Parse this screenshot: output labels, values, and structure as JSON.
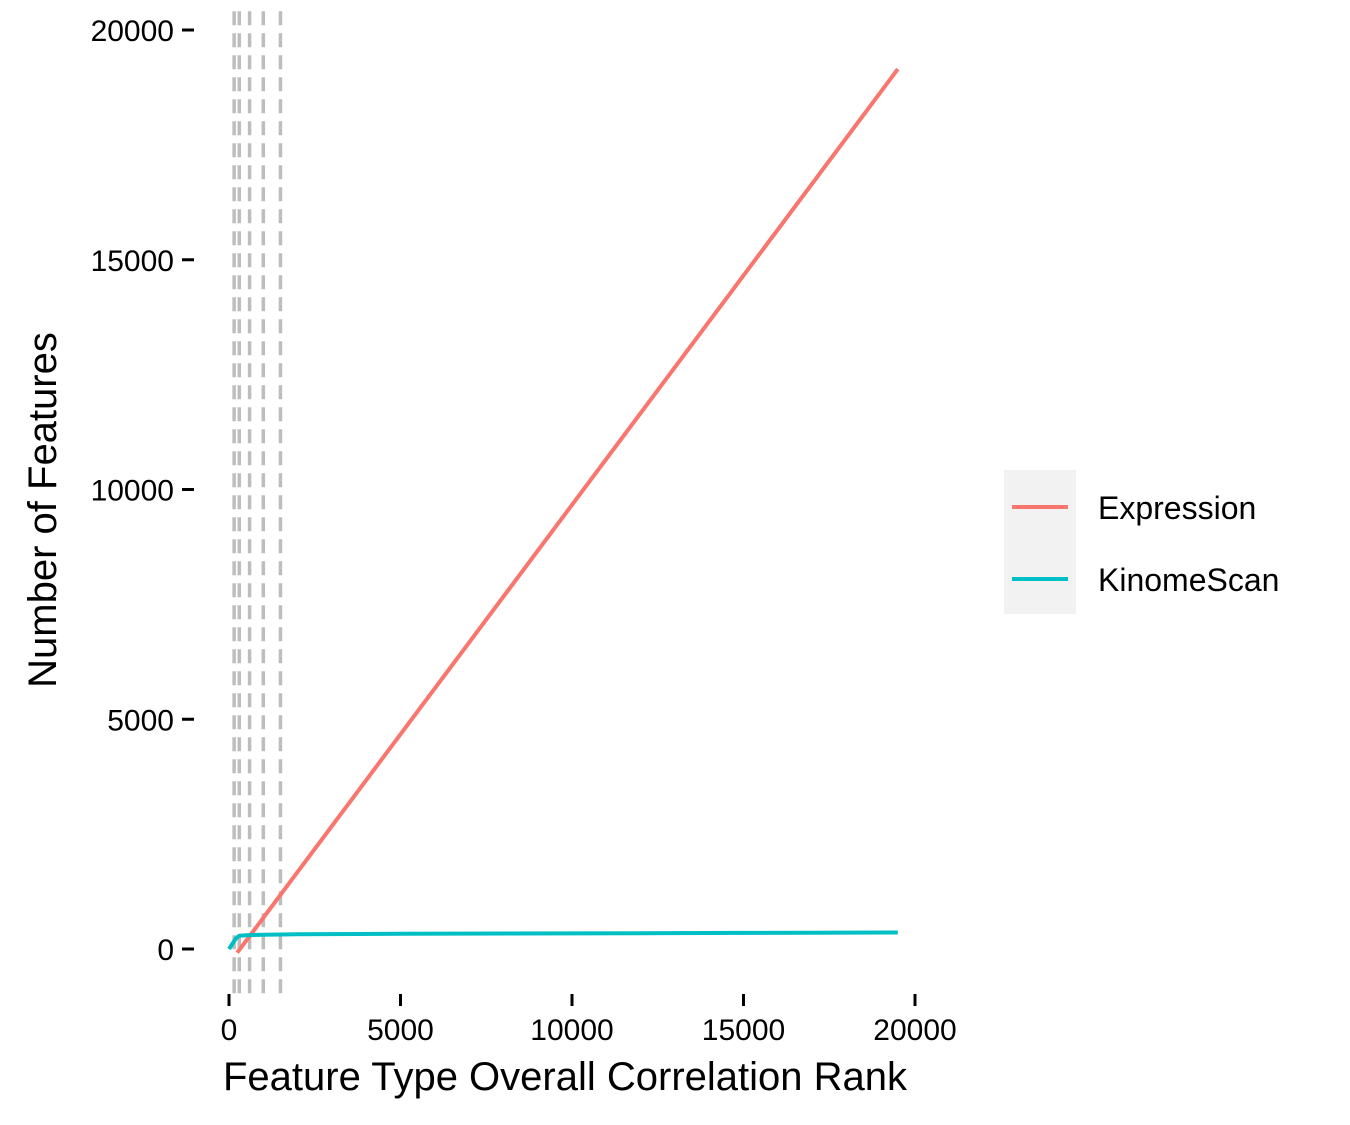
{
  "chart_data": {
    "type": "line",
    "title": "",
    "xlabel": "Feature Type Overall Correlation Rank",
    "ylabel": "Number of Features",
    "xlim": [
      -300,
      21000
    ],
    "ylim": [
      -900,
      20300
    ],
    "x_ticks": [
      0,
      5000,
      10000,
      15000,
      20000
    ],
    "y_ticks": [
      0,
      5000,
      10000,
      15000,
      20000
    ],
    "x_tick_labels": [
      "0",
      "5000",
      "10000",
      "15000",
      "20000"
    ],
    "y_tick_labels": [
      "0",
      "5000",
      "10000",
      "15000",
      "20000"
    ],
    "vlines": [
      150,
      300,
      600,
      1000,
      1500
    ],
    "vline_color": "#bdbdbd",
    "grid": false,
    "legend_position": "right",
    "series": [
      {
        "name": "Expression",
        "color": "#f8766d",
        "points": [
          [
            240,
            -80
          ],
          [
            19500,
            19150
          ]
        ]
      },
      {
        "name": "KinomeScan",
        "color": "#00bfc4",
        "points": [
          [
            0,
            0
          ],
          [
            200,
            230
          ],
          [
            300,
            290
          ],
          [
            500,
            300
          ],
          [
            1000,
            310
          ],
          [
            2000,
            320
          ],
          [
            5000,
            330
          ],
          [
            10000,
            340
          ],
          [
            15000,
            350
          ],
          [
            19500,
            360
          ]
        ]
      }
    ]
  }
}
